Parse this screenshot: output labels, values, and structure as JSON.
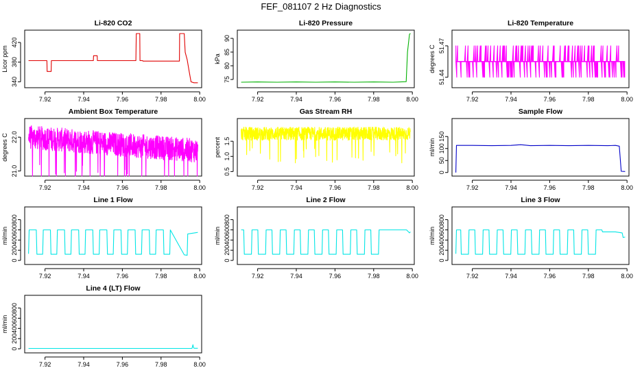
{
  "figure_title": "FEF_081107  2 Hz Diagnostics",
  "chart_data": [
    {
      "type": "line",
      "panel": "co2",
      "title": "Li-820 CO2",
      "ylabel": "Licor ppm",
      "xlabel": "",
      "color": "#e00000",
      "xlim": [
        7.9095,
        8.001
      ],
      "ylim": [
        328,
        445
      ],
      "xticks": [
        "7.92",
        "7.94",
        "7.96",
        "7.98",
        "8.00"
      ],
      "xtick_values": [
        7.92,
        7.94,
        7.96,
        7.98,
        8.0
      ],
      "yticks": [
        "340",
        "380",
        "420"
      ],
      "ytick_values": [
        340,
        380,
        420
      ],
      "x": [
        7.9115,
        7.921,
        7.9211,
        7.9232,
        7.9233,
        7.945,
        7.9451,
        7.947,
        7.9471,
        7.967,
        7.9672,
        7.969,
        7.9691,
        7.9705,
        7.9706,
        7.9895,
        7.9896,
        7.992,
        7.9925,
        7.9935,
        7.9945,
        7.9955,
        7.997,
        7.999
      ],
      "y": [
        383,
        383,
        361,
        361,
        383,
        383,
        393,
        393,
        383,
        383,
        438,
        438,
        383,
        383,
        382,
        382,
        438,
        438,
        400,
        385,
        362,
        340,
        338,
        338
      ]
    },
    {
      "type": "line",
      "panel": "pressure",
      "title": "Li-820 Pressure",
      "ylabel": "kPa",
      "xlabel": "",
      "color": "#00b000",
      "xlim": [
        7.9095,
        8.001
      ],
      "ylim": [
        72,
        93
      ],
      "xticks": [
        "7.92",
        "7.94",
        "7.96",
        "7.98",
        "8.00"
      ],
      "xtick_values": [
        7.92,
        7.94,
        7.96,
        7.98,
        8.0
      ],
      "yticks": [
        "75",
        "80",
        "85",
        "90"
      ],
      "ytick_values": [
        75,
        80,
        85,
        90
      ],
      "x": [
        7.9115,
        7.92,
        7.93,
        7.94,
        7.95,
        7.96,
        7.97,
        7.98,
        7.99,
        7.9968,
        7.9975,
        7.9985,
        7.999
      ],
      "y": [
        74.0,
        74.1,
        74.0,
        74.1,
        74.0,
        74.1,
        74.0,
        74.1,
        74.0,
        74.2,
        85.0,
        91.5,
        91.8
      ]
    },
    {
      "type": "line",
      "panel": "li820-temp",
      "title": "Li-820 Temperature",
      "ylabel": "degrees C",
      "xlabel": "",
      "color": "#ff00ff",
      "xlim": [
        7.9095,
        8.001
      ],
      "ylim": [
        51.43,
        51.485
      ],
      "xticks": [
        "7.92",
        "7.94",
        "7.96",
        "7.98",
        "8.00"
      ],
      "xtick_values": [
        7.92,
        7.94,
        7.96,
        7.98,
        8.0
      ],
      "yticks": [
        "51.44",
        "51.47"
      ],
      "ytick_values": [
        51.44,
        51.47
      ],
      "x": [
        7.9115,
        7.999
      ],
      "y": [
        51.455,
        51.455
      ],
      "levels": [
        51.44,
        51.455,
        51.47
      ]
    },
    {
      "type": "line",
      "panel": "ambient-box-temp",
      "title": "Ambient Box Temperature",
      "ylabel": "degrees C",
      "xlabel": "",
      "color": "#ff00ff",
      "xlim": [
        7.9095,
        8.001
      ],
      "ylim": [
        20.85,
        22.55
      ],
      "xticks": [
        "7.92",
        "7.94",
        "7.96",
        "7.98",
        "8.00"
      ],
      "xtick_values": [
        7.92,
        7.94,
        7.96,
        7.98,
        8.0
      ],
      "yticks": [
        "21.0",
        "22.0"
      ],
      "ytick_values": [
        21.0,
        22.0
      ],
      "x": [
        7.9115,
        7.999
      ],
      "y": [
        22.0,
        21.6
      ],
      "noise": 0.35
    },
    {
      "type": "line",
      "panel": "gas-stream-rh",
      "title": "Gas Stream RH",
      "ylabel": "percent",
      "xlabel": "",
      "color": "#ffff00",
      "xlim": [
        7.9095,
        8.001
      ],
      "ylim": [
        0.35,
        2.25
      ],
      "xticks": [
        "7.92",
        "7.94",
        "7.96",
        "7.98",
        "8.00"
      ],
      "xtick_values": [
        7.92,
        7.94,
        7.96,
        7.98,
        8.0
      ],
      "yticks": [
        "0.5",
        "1.0",
        "1.5"
      ],
      "ytick_values": [
        0.5,
        1.0,
        1.5
      ],
      "x": [
        7.9115,
        7.999
      ],
      "y": [
        1.75,
        1.75
      ],
      "noise": 0.22
    },
    {
      "type": "line",
      "panel": "sample-flow",
      "title": "Sample Flow",
      "ylabel": "ml/min",
      "xlabel": "",
      "color": "#0000c8",
      "xlim": [
        7.9095,
        8.001
      ],
      "ylim": [
        -15,
        225
      ],
      "xticks": [
        "7.92",
        "7.94",
        "7.96",
        "7.98",
        "8.00"
      ],
      "xtick_values": [
        7.92,
        7.94,
        7.96,
        7.98,
        8.0
      ],
      "yticks": [
        "0",
        "50",
        "100",
        "150"
      ],
      "ytick_values": [
        0,
        50,
        100,
        150
      ],
      "x": [
        7.9115,
        7.9118,
        7.92,
        7.93,
        7.94,
        7.945,
        7.95,
        7.96,
        7.97,
        7.98,
        7.99,
        7.994,
        7.996,
        7.997,
        7.999
      ],
      "y": [
        0,
        113,
        113,
        112,
        113,
        116,
        112,
        113,
        112,
        113,
        112,
        113,
        110,
        5,
        4
      ]
    },
    {
      "type": "line",
      "panel": "line1-flow",
      "title": "Line 1 Flow",
      "ylabel": "ml/min",
      "xlabel": "",
      "color": "#00e5e5",
      "xlim": [
        7.9095,
        8.001
      ],
      "ylim": [
        -80,
        1050
      ],
      "xticks": [
        "7.92",
        "7.94",
        "7.96",
        "7.98",
        "8.00"
      ],
      "xtick_values": [
        7.92,
        7.94,
        7.96,
        7.98,
        8.0
      ],
      "yticks": [
        "0",
        "200",
        "400",
        "600",
        "800"
      ],
      "ytick_values": [
        0,
        200,
        400,
        600,
        800
      ],
      "x": [
        7.9115,
        7.9118,
        7.9155,
        7.9158,
        7.9188,
        7.9191,
        7.9228,
        7.9231,
        7.9261,
        7.9264,
        7.9301,
        7.9304,
        7.9334,
        7.9337,
        7.9374,
        7.9377,
        7.9407,
        7.941,
        7.9447,
        7.945,
        7.948,
        7.9483,
        7.952,
        7.9523,
        7.9553,
        7.9556,
        7.9593,
        7.9596,
        7.9626,
        7.9629,
        7.9666,
        7.9669,
        7.9699,
        7.9702,
        7.9739,
        7.9742,
        7.9772,
        7.9775,
        7.9812,
        7.9815,
        7.9845,
        7.9848,
        7.992,
        7.9935,
        7.9938,
        7.999
      ],
      "y": [
        130,
        600,
        600,
        120,
        120,
        600,
        600,
        120,
        120,
        600,
        600,
        120,
        120,
        600,
        600,
        120,
        120,
        600,
        600,
        120,
        120,
        600,
        600,
        120,
        120,
        600,
        600,
        120,
        120,
        600,
        600,
        120,
        120,
        600,
        600,
        120,
        120,
        600,
        600,
        120,
        120,
        600,
        110,
        100,
        520,
        550
      ]
    },
    {
      "type": "line",
      "panel": "line2-flow",
      "title": "Line 2 Flow",
      "ylabel": "ml/min",
      "xlabel": "",
      "color": "#00e5e5",
      "xlim": [
        7.9095,
        8.001
      ],
      "ylim": [
        -80,
        1050
      ],
      "xticks": [
        "7.92",
        "7.94",
        "7.96",
        "7.98",
        "8.00"
      ],
      "xtick_values": [
        7.92,
        7.94,
        7.96,
        7.98,
        8.0
      ],
      "yticks": [
        "0",
        "200",
        "400",
        "600",
        "800"
      ],
      "ytick_values": [
        0,
        200,
        400,
        600,
        800
      ],
      "x": [
        7.9115,
        7.9128,
        7.9131,
        7.9168,
        7.9171,
        7.9201,
        7.9204,
        7.9241,
        7.9244,
        7.9274,
        7.9277,
        7.9314,
        7.9317,
        7.9347,
        7.935,
        7.9387,
        7.939,
        7.942,
        7.9423,
        7.946,
        7.9463,
        7.9493,
        7.9496,
        7.9533,
        7.9536,
        7.9566,
        7.9569,
        7.9606,
        7.9609,
        7.9639,
        7.9642,
        7.9679,
        7.9682,
        7.9712,
        7.9715,
        7.9752,
        7.9755,
        7.9785,
        7.9788,
        7.9825,
        7.9828,
        7.9858,
        7.9861,
        7.997,
        7.9985,
        7.999
      ],
      "y": [
        600,
        600,
        120,
        120,
        600,
        600,
        120,
        120,
        600,
        600,
        120,
        120,
        600,
        600,
        120,
        120,
        600,
        600,
        120,
        120,
        600,
        600,
        120,
        120,
        600,
        600,
        120,
        120,
        600,
        600,
        120,
        120,
        600,
        600,
        120,
        120,
        600,
        600,
        120,
        120,
        600,
        600,
        600,
        600,
        540,
        560
      ]
    },
    {
      "type": "line",
      "panel": "line3-flow",
      "title": "Line 3 Flow",
      "ylabel": "ml/min",
      "xlabel": "",
      "color": "#00e5e5",
      "xlim": [
        7.9095,
        8.001
      ],
      "ylim": [
        -80,
        1050
      ],
      "xticks": [
        "7.92",
        "7.94",
        "7.96",
        "7.98",
        "8.00"
      ],
      "xtick_values": [
        7.92,
        7.94,
        7.96,
        7.98,
        8.0
      ],
      "yticks": [
        "0",
        "200",
        "400",
        "600",
        "800"
      ],
      "ytick_values": [
        0,
        200,
        400,
        600,
        800
      ],
      "x": [
        7.9115,
        7.9118,
        7.914,
        7.9143,
        7.918,
        7.9183,
        7.9213,
        7.9216,
        7.9253,
        7.9256,
        7.9286,
        7.9289,
        7.9326,
        7.9329,
        7.9359,
        7.9362,
        7.9399,
        7.9402,
        7.9432,
        7.9435,
        7.9472,
        7.9475,
        7.9505,
        7.9508,
        7.9545,
        7.9548,
        7.9578,
        7.9581,
        7.9618,
        7.9621,
        7.9651,
        7.9654,
        7.9691,
        7.9694,
        7.9724,
        7.9727,
        7.9764,
        7.9767,
        7.9797,
        7.98,
        7.9837,
        7.984,
        7.987,
        7.9873,
        7.994,
        7.9975,
        7.998,
        7.999
      ],
      "y": [
        130,
        600,
        600,
        120,
        120,
        600,
        600,
        120,
        120,
        600,
        600,
        120,
        120,
        600,
        600,
        120,
        120,
        600,
        600,
        120,
        120,
        600,
        600,
        120,
        120,
        600,
        600,
        120,
        120,
        600,
        600,
        120,
        120,
        600,
        600,
        120,
        120,
        600,
        600,
        120,
        120,
        600,
        600,
        560,
        560,
        540,
        450,
        460
      ]
    },
    {
      "type": "line",
      "panel": "line4-flow",
      "title": "Line 4 (LT) Flow",
      "ylabel": "ml/min",
      "xlabel": "",
      "color": "#00e5e5",
      "xlim": [
        7.9095,
        8.001
      ],
      "ylim": [
        -80,
        1050
      ],
      "xticks": [
        "7.92",
        "7.94",
        "7.96",
        "7.98",
        "8.00"
      ],
      "xtick_values": [
        7.92,
        7.94,
        7.96,
        7.98,
        8.0
      ],
      "yticks": [
        "0",
        "200",
        "400",
        "600",
        "800"
      ],
      "ytick_values": [
        0,
        200,
        400,
        600,
        800
      ],
      "x": [
        7.9115,
        7.95,
        7.996,
        7.9965,
        7.9968,
        7.9972,
        7.999
      ],
      "y": [
        8,
        8,
        8,
        80,
        20,
        10,
        10
      ]
    }
  ]
}
